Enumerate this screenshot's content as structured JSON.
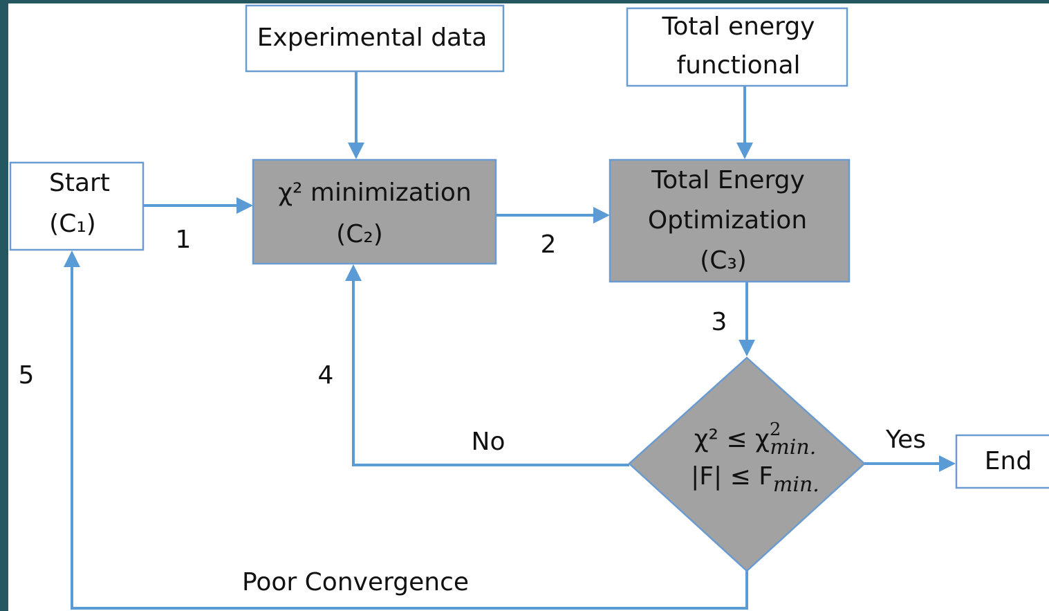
{
  "nodes": {
    "experimental_data": {
      "label": "Experimental data"
    },
    "total_energy_functional": {
      "lines": [
        "Total energy",
        "functional"
      ]
    },
    "start": {
      "lines": [
        "Start",
        "(C₁)"
      ]
    },
    "chi_minimization": {
      "lines": [
        "χ² minimization",
        "(C₂)"
      ]
    },
    "total_energy_optimization": {
      "lines": [
        "Total Energy",
        "Optimization",
        "(C₃)"
      ]
    },
    "condition": {
      "line1": {
        "base": "χ² ≤ χ",
        "sup": "2",
        "sub": "min."
      },
      "line2": {
        "base": "|F| ≤ F",
        "sub": "min."
      }
    },
    "end": {
      "label": "End"
    }
  },
  "edges": {
    "step1": "1",
    "step2": "2",
    "step3": "3",
    "step4": "4",
    "step5": "5",
    "no": "No",
    "yes": "Yes",
    "poor_convergence": "Poor Convergence"
  }
}
